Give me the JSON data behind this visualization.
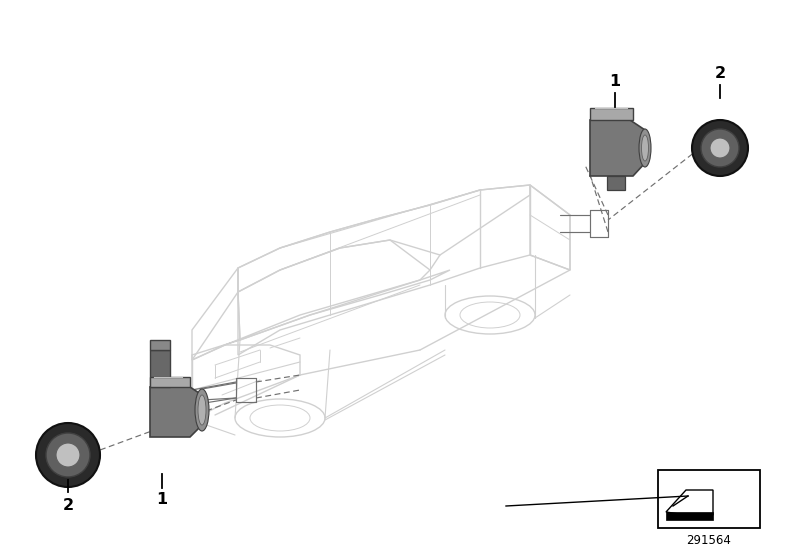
{
  "bg_color": "#ffffff",
  "car_color": "#d0d0d0",
  "car_lw": 1.0,
  "sensor_color": "#787878",
  "sensor_dark": "#404040",
  "sensor_light": "#a8a8a8",
  "ring_outer": "#2a2a2a",
  "ring_mid": "#606060",
  "ring_inner": "#c0c0c0",
  "leader_color": "#707070",
  "label_color": "#000000",
  "diagram_number": "291564",
  "figsize": [
    8.0,
    5.6
  ],
  "dpi": 100
}
